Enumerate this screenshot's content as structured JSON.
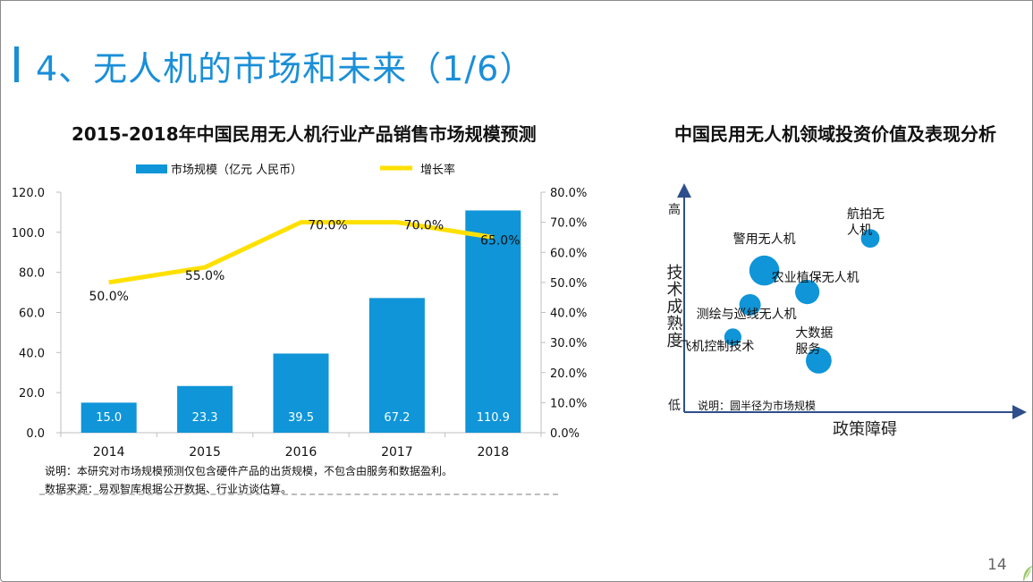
{
  "page": {
    "title": "4、无人机的市场和未来（1/6）",
    "page_number": "14",
    "accent_color": "#1a8fd8"
  },
  "notes": [
    "说明：本研究对市场规模预测仅包含硬件产品的出货规模，不包含由服务和数据盈利。",
    "数据来源：易观智库根据公开数据、行业访谈估算。"
  ],
  "chart_data": [
    {
      "type": "bar",
      "title": "2015-2018年中国民用无人机行业产品销售市场规模预测",
      "categories": [
        "2014",
        "2015",
        "2016",
        "2017",
        "2018"
      ],
      "series": [
        {
          "name": "市场规模（亿元 人民币）",
          "type": "bar",
          "axis": "left",
          "color": "#0f95d8",
          "values": [
            15.0,
            23.3,
            39.5,
            67.2,
            110.9
          ],
          "labels": [
            "15.0",
            "23.3",
            "39.5",
            "67.2",
            "110.9"
          ]
        },
        {
          "name": "增长率",
          "type": "line",
          "axis": "right",
          "color": "#ffe000",
          "values": [
            50.0,
            55.0,
            70.0,
            70.0,
            65.0
          ],
          "labels": [
            "50.0%",
            "55.0%",
            "70.0%",
            "70.0%",
            "65.0%"
          ]
        }
      ],
      "y_left": {
        "range": [
          0,
          120
        ],
        "ticks": [
          "0.0",
          "20.0",
          "40.0",
          "60.0",
          "80.0",
          "100.0",
          "120.0"
        ]
      },
      "y_right": {
        "range": [
          0,
          80
        ],
        "ticks": [
          "0.0%",
          "10.0%",
          "20.0%",
          "30.0%",
          "40.0%",
          "50.0%",
          "60.0%",
          "70.0%",
          "80.0%"
        ]
      },
      "legend_position": "top",
      "grid": false
    },
    {
      "type": "scatter",
      "title": "中国民用无人机领域投资价值及表现分析",
      "xlabel": "政策障碍",
      "ylabel": "技术成熟度",
      "y_high_label": "高",
      "y_low_label": "低",
      "note": "说明：圆半径为市场规模",
      "bubble_color": "#0f95d8",
      "x_range": [
        0,
        10
      ],
      "y_range": [
        0,
        10
      ],
      "points": [
        {
          "label": "航拍无人机",
          "label_lines": [
            "航拍无",
            "人机"
          ],
          "x": 6.5,
          "y": 8.1,
          "r": 1.3,
          "label_pos": "top-left"
        },
        {
          "label": "警用无人机",
          "label_lines": [
            "警用无人机"
          ],
          "x": 2.8,
          "y": 6.6,
          "r": 2.1,
          "label_pos": "top"
        },
        {
          "label": "农业植保无人机",
          "label_lines": [
            "农业植保无人机"
          ],
          "x": 4.3,
          "y": 5.6,
          "r": 1.7,
          "label_pos": "top-right"
        },
        {
          "label": "测绘与巡线无人机",
          "label_lines": [
            "测绘与巡线无人机"
          ],
          "x": 2.3,
          "y": 5.0,
          "r": 1.5,
          "label_pos": "left"
        },
        {
          "label": "飞机控制技术",
          "label_lines": [
            "飞机控制技术"
          ],
          "x": 1.7,
          "y": 3.5,
          "r": 1.2,
          "label_pos": "left"
        },
        {
          "label": "大数据服务",
          "label_lines": [
            "大数据",
            "服务"
          ],
          "x": 4.7,
          "y": 2.4,
          "r": 1.8,
          "label_pos": "top-left"
        }
      ]
    }
  ]
}
